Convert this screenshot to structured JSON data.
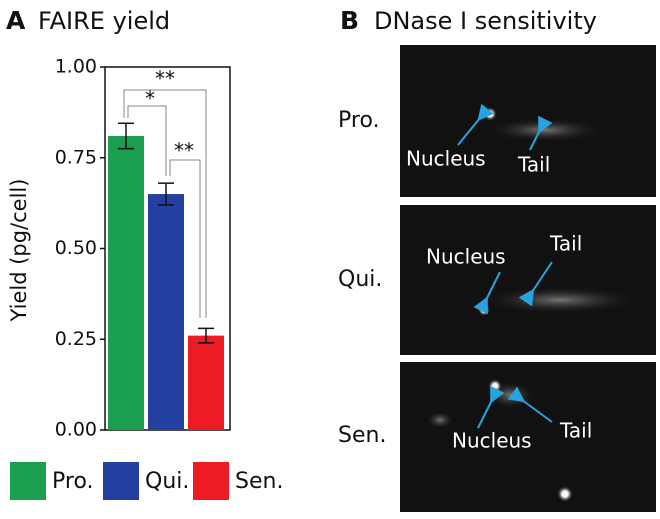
{
  "chart_data": {
    "type": "bar",
    "panel_label": "A",
    "title": "FAIRE yield",
    "ylabel": "Yield (pg/cell)",
    "categories": [
      "Pro.",
      "Qui.",
      "Sen."
    ],
    "values": [
      0.81,
      0.65,
      0.26
    ],
    "errors": [
      0.035,
      0.03,
      0.02
    ],
    "colors": [
      "#1a9e4f",
      "#2340a0",
      "#ed1c24"
    ],
    "ylim": [
      0,
      1
    ],
    "yticks": [
      {
        "value": 0,
        "label": "0.00"
      },
      {
        "value": 0.25,
        "label": "0.25"
      },
      {
        "value": 0.5,
        "label": "0.50"
      },
      {
        "value": 0.75,
        "label": "0.75"
      },
      {
        "value": 1,
        "label": "1.00"
      }
    ],
    "annotations": [
      "**",
      "*",
      "**"
    ]
  },
  "panel_b": {
    "label": "B",
    "title": "DNase I sensitivity",
    "rows": [
      {
        "label": "Pro.",
        "nucleus": "Nucleus",
        "tail": "Tail"
      },
      {
        "label": "Qui.",
        "nucleus": "Nucleus",
        "tail": "Tail"
      },
      {
        "label": "Sen.",
        "nucleus": "Nucleus",
        "tail": "Tail"
      }
    ]
  }
}
